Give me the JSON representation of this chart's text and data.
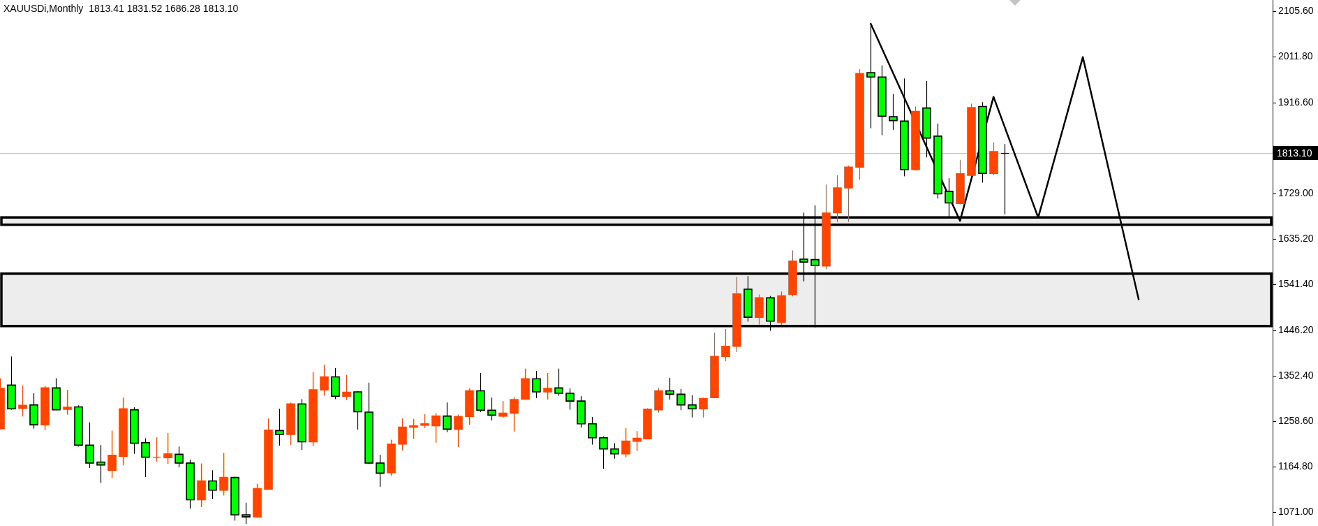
{
  "chart_data": {
    "type": "candlestick",
    "title": "XAUUSDi,Monthly  1813.41 1831.52 1686.28 1813.10",
    "categories": [
      null,
      null,
      null,
      null,
      null,
      null,
      null,
      null,
      null,
      null,
      null,
      null,
      null,
      null,
      null,
      null,
      null,
      null,
      null,
      null,
      null,
      null,
      null,
      null,
      null,
      null,
      null,
      null,
      null,
      null,
      null,
      null,
      null,
      null,
      null,
      null,
      null,
      null,
      null,
      null,
      null,
      null,
      null,
      null,
      null,
      null,
      null,
      null,
      null,
      null,
      null,
      null,
      null,
      null,
      null,
      null,
      null,
      null,
      null,
      null,
      null,
      null,
      null,
      null,
      null,
      null,
      null,
      null,
      null,
      null,
      null,
      null,
      null,
      null,
      null,
      null,
      null,
      null,
      null,
      null,
      null,
      null,
      null,
      null,
      null,
      null,
      null,
      null,
      null,
      null,
      null,
      null,
      null,
      null,
      null,
      null,
      null,
      null,
      null,
      null,
      null,
      null,
      null,
      null,
      null,
      null,
      null,
      null,
      null,
      null,
      null,
      null,
      null,
      null,
      null
    ],
    "ohlc": [
      [
        1244,
        1348,
        1242,
        1327
      ],
      [
        1334,
        1393,
        1283,
        1285
      ],
      [
        1286,
        1333,
        1269,
        1292
      ],
      [
        1293,
        1317,
        1244,
        1252
      ],
      [
        1252,
        1332,
        1241,
        1328
      ],
      [
        1328,
        1348,
        1282,
        1283
      ],
      [
        1284,
        1324,
        1273,
        1288
      ],
      [
        1289,
        1292,
        1207,
        1210
      ],
      [
        1210,
        1257,
        1163,
        1173
      ],
      [
        1175,
        1210,
        1132,
        1169
      ],
      [
        1158,
        1240,
        1142,
        1189
      ],
      [
        1187,
        1308,
        1168,
        1285
      ],
      [
        1283,
        1288,
        1192,
        1214
      ],
      [
        1215,
        1224,
        1144,
        1185
      ],
      [
        1184,
        1226,
        1176,
        1186
      ],
      [
        1184,
        1235,
        1171,
        1192
      ],
      [
        1191,
        1207,
        1164,
        1173
      ],
      [
        1173,
        1180,
        1079,
        1097
      ],
      [
        1097,
        1172,
        1082,
        1136
      ],
      [
        1136,
        1158,
        1099,
        1117
      ],
      [
        1117,
        1194,
        1106,
        1143
      ],
      [
        1143,
        1145,
        1054,
        1066
      ],
      [
        1066,
        1091,
        1047,
        1062
      ],
      [
        1062,
        1130,
        1061,
        1120
      ],
      [
        1119,
        1265,
        1118,
        1241
      ],
      [
        1240,
        1285,
        1209,
        1232
      ],
      [
        1232,
        1298,
        1210,
        1295
      ],
      [
        1295,
        1305,
        1200,
        1217
      ],
      [
        1217,
        1361,
        1208,
        1324
      ],
      [
        1324,
        1376,
        1312,
        1351
      ],
      [
        1351,
        1369,
        1305,
        1311
      ],
      [
        1311,
        1355,
        1303,
        1319
      ],
      [
        1320,
        1321,
        1242,
        1279
      ],
      [
        1278,
        1339,
        1171,
        1173
      ],
      [
        1173,
        1190,
        1124,
        1152
      ],
      [
        1153,
        1221,
        1147,
        1212
      ],
      [
        1212,
        1265,
        1199,
        1247
      ],
      [
        1247,
        1264,
        1223,
        1250
      ],
      [
        1251,
        1274,
        1245,
        1254
      ],
      [
        1250,
        1276,
        1215,
        1270
      ],
      [
        1270,
        1298,
        1237,
        1243
      ],
      [
        1243,
        1273,
        1206,
        1269
      ],
      [
        1269,
        1327,
        1252,
        1322
      ],
      [
        1322,
        1359,
        1278,
        1282
      ],
      [
        1282,
        1308,
        1261,
        1272
      ],
      [
        1270,
        1301,
        1267,
        1276
      ],
      [
        1276,
        1309,
        1238,
        1304
      ],
      [
        1305,
        1368,
        1304,
        1347
      ],
      [
        1347,
        1363,
        1307,
        1320
      ],
      [
        1320,
        1359,
        1304,
        1327
      ],
      [
        1328,
        1368,
        1312,
        1317
      ],
      [
        1317,
        1327,
        1283,
        1301
      ],
      [
        1301,
        1311,
        1246,
        1254
      ],
      [
        1254,
        1268,
        1211,
        1225
      ],
      [
        1225,
        1228,
        1161,
        1202
      ],
      [
        1202,
        1214,
        1182,
        1192
      ],
      [
        1192,
        1245,
        1185,
        1218
      ],
      [
        1218,
        1239,
        1198,
        1224
      ],
      [
        1223,
        1286,
        1222,
        1284
      ],
      [
        1283,
        1328,
        1277,
        1322
      ],
      [
        1322,
        1349,
        1304,
        1315
      ],
      [
        1315,
        1326,
        1282,
        1293
      ],
      [
        1293,
        1313,
        1267,
        1285
      ],
      [
        1285,
        1308,
        1267,
        1306
      ],
      [
        1308,
        1442,
        1307,
        1393
      ],
      [
        1393,
        1450,
        1383,
        1414
      ],
      [
        1414,
        1557,
        1402,
        1522
      ],
      [
        1532,
        1559,
        1465,
        1474
      ],
      [
        1474,
        1521,
        1459,
        1514
      ],
      [
        1514,
        1518,
        1446,
        1466
      ],
      [
        1464,
        1527,
        1458,
        1518
      ],
      [
        1521,
        1612,
        1517,
        1590
      ],
      [
        1594,
        1690,
        1548,
        1588
      ],
      [
        1593,
        1705,
        1453,
        1581
      ],
      [
        1580,
        1748,
        1573,
        1689
      ],
      [
        1690,
        1767,
        1671,
        1741
      ],
      [
        1741,
        1787,
        1671,
        1784
      ],
      [
        1784,
        1986,
        1758,
        1977
      ],
      [
        1979,
        2077,
        1864,
        1970
      ],
      [
        1970,
        1994,
        1850,
        1889
      ],
      [
        1888,
        1935,
        1861,
        1880
      ],
      [
        1879,
        1967,
        1765,
        1779
      ],
      [
        1779,
        1909,
        1777,
        1899
      ],
      [
        1906,
        1962,
        1804,
        1844
      ],
      [
        1848,
        1874,
        1719,
        1729
      ],
      [
        1734,
        1761,
        1682,
        1710
      ],
      [
        1709,
        1799,
        1707,
        1770
      ],
      [
        1767,
        1915,
        1767,
        1907
      ],
      [
        1909,
        1918,
        1752,
        1771
      ],
      [
        1771,
        1835,
        1767,
        1816
      ],
      [
        1813.41,
        1831.52,
        1686.28,
        1813.1
      ],
      null,
      null,
      null,
      null,
      null,
      null,
      null,
      null,
      null,
      null,
      null,
      null,
      null,
      null,
      null,
      null,
      null,
      null,
      null,
      null,
      null,
      null,
      null,
      null
    ],
    "colors": [
      "#ff4500",
      "#00ff00",
      "#ff4500",
      "#00ff00",
      "#ff4500",
      "#00ff00",
      "#ff4500",
      "#00ff00",
      "#00ff00",
      "#00ff00",
      "#ff4500",
      "#ff4500",
      "#00ff00",
      "#00ff00",
      "#ff4500",
      "#ff4500",
      "#00ff00",
      "#00ff00",
      "#ff4500",
      "#00ff00",
      "#ff4500",
      "#00ff00",
      "#00ff00",
      "#ff4500",
      "#ff4500",
      "#00ff00",
      "#ff4500",
      "#00ff00",
      "#ff4500",
      "#ff4500",
      "#00ff00",
      "#ff4500",
      "#00ff00",
      "#00ff00",
      "#00ff00",
      "#ff4500",
      "#ff4500",
      "#ff4500",
      "#ff4500",
      "#ff4500",
      "#00ff00",
      "#ff4500",
      "#ff4500",
      "#00ff00",
      "#00ff00",
      "#ff4500",
      "#ff4500",
      "#ff4500",
      "#00ff00",
      "#ff4500",
      "#00ff00",
      "#00ff00",
      "#00ff00",
      "#00ff00",
      "#00ff00",
      "#00ff00",
      "#ff4500",
      "#ff4500",
      "#ff4500",
      "#ff4500",
      "#00ff00",
      "#00ff00",
      "#00ff00",
      "#ff4500",
      "#ff4500",
      "#ff4500",
      "#ff4500",
      "#00ff00",
      "#ff4500",
      "#00ff00",
      "#ff4500",
      "#ff4500",
      "#00ff00",
      "#00ff00",
      "#ff4500",
      "#ff4500",
      "#ff4500",
      "#ff4500",
      "#00ff00",
      "#00ff00",
      "#00ff00",
      "#00ff00",
      "#ff4500",
      "#00ff00",
      "#00ff00",
      "#00ff00",
      "#ff4500",
      "#ff4500",
      "#00ff00",
      "#ff4500",
      "#000000",
      null,
      null,
      null,
      null,
      null,
      null,
      null,
      null,
      null,
      null,
      null,
      null,
      null,
      null,
      null,
      null,
      null,
      null,
      null,
      null,
      null,
      null,
      null,
      null
    ],
    "series": [
      {
        "type": "line",
        "color": "#000000",
        "values": [
          null,
          null,
          null,
          null,
          null,
          null,
          null,
          null,
          null,
          null,
          null,
          null,
          null,
          null,
          null,
          null,
          null,
          null,
          null,
          null,
          null,
          null,
          null,
          null,
          null,
          null,
          null,
          null,
          null,
          null,
          null,
          null,
          null,
          null,
          null,
          null,
          null,
          null,
          null,
          null,
          null,
          null,
          null,
          null,
          null,
          null,
          null,
          null,
          null,
          null,
          null,
          null,
          null,
          null,
          null,
          null,
          null,
          null,
          null,
          null,
          null,
          null,
          null,
          null,
          null,
          null,
          null,
          null,
          null,
          null,
          null,
          null,
          null,
          null,
          null,
          null,
          null,
          null,
          2080,
          null,
          null,
          null,
          null,
          null,
          null,
          null,
          1673,
          null,
          null,
          1929,
          null,
          null,
          null,
          1680,
          null,
          null,
          null,
          2011,
          null,
          null,
          null,
          null,
          1511,
          null,
          null,
          null,
          null,
          null,
          null,
          null,
          null,
          null,
          null,
          null,
          null
        ]
      }
    ],
    "ylim": [
      1043,
      2129
    ],
    "yticks": [
      {
        "value": 2105.6,
        "label": "2105.60"
      },
      {
        "value": 2011.8,
        "label": "2011.80"
      },
      {
        "value": 1916.6,
        "label": "1916.60"
      },
      {
        "value": 1823,
        "label": null
      },
      {
        "value": 1729,
        "label": "1729.00"
      },
      {
        "value": 1635.2,
        "label": "1635.20"
      },
      {
        "value": 1541.4,
        "label": "1541.40"
      },
      {
        "value": 1446.2,
        "label": "1446.20"
      },
      {
        "value": 1352.4,
        "label": "1352.40"
      },
      {
        "value": 1258.6,
        "label": "1258.60"
      },
      {
        "value": 1164.8,
        "label": "1164.80"
      },
      {
        "value": 1071,
        "label": "1071.00"
      }
    ],
    "ref_lines": [
      {
        "axis": "y",
        "value": 1813.1,
        "label": "1813.10",
        "color": "#c0c0c0"
      }
    ],
    "bands": [
      {
        "axis": "y",
        "from": 1456,
        "to": 1564,
        "color": "#000000"
      },
      {
        "axis": "y",
        "from": 1665,
        "to": 1680,
        "color": "#000000"
      }
    ]
  }
}
